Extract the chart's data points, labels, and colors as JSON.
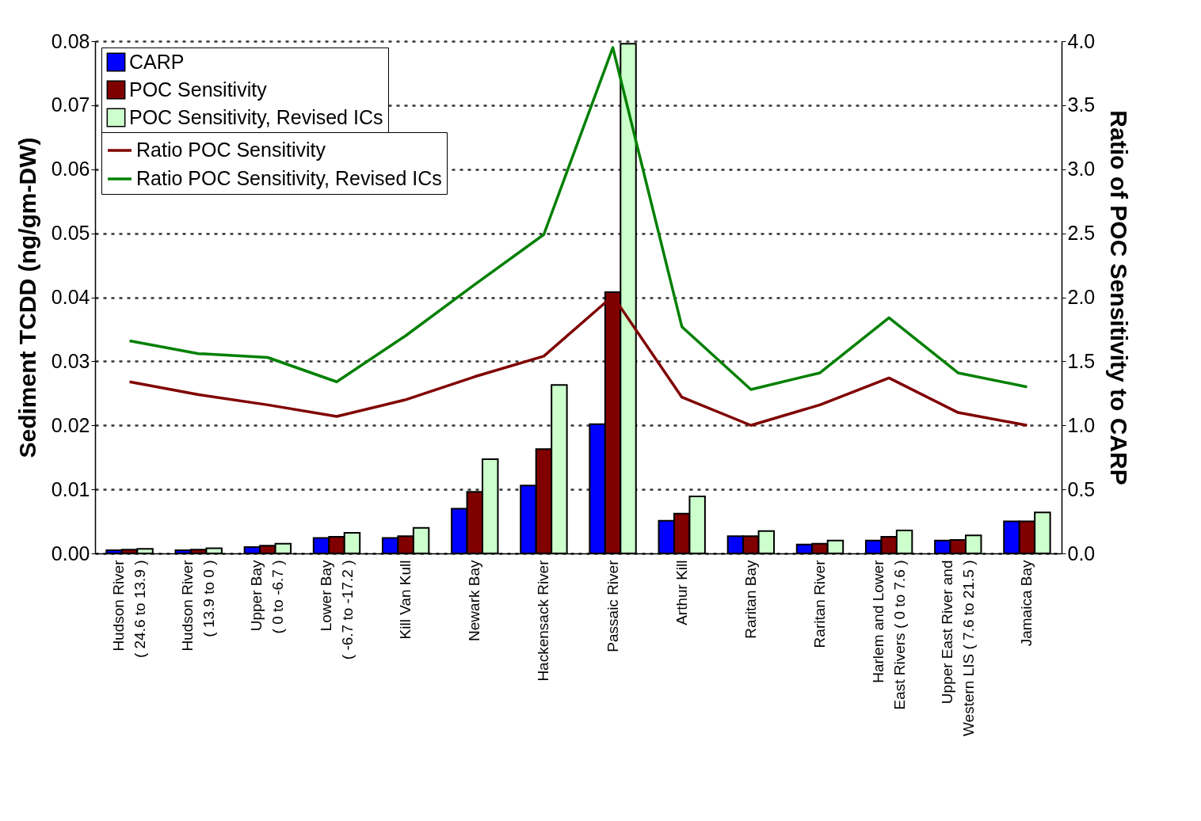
{
  "chart_data": {
    "type": "bar",
    "categories": [
      "Hudson River\n( 24.6 to 13.9 )",
      "Hudson River\n( 13.9 to 0 )",
      "Upper Bay\n( 0 to -6.7 )",
      "Lower Bay\n( -6.7 to -17.2 )",
      "Kill Van Kull",
      "Newark Bay",
      "Hackensack River",
      "Passaic River",
      "Arthur Kill",
      "Raritan Bay",
      "Raritan River",
      "Harlem and Lower\nEast Rivers ( 0 to 7.6 )",
      "Upper East River and\nWestern LIS ( 7.6 to 21.5 )",
      "Jamaica Bay"
    ],
    "ylabel": "Sediment TCDD (ng/gm-DW)",
    "y2label": "Ratio of POC Sensitivity to CARP",
    "series": [
      {
        "name": "CARP",
        "type": "bar",
        "color": "#0000ff",
        "values": [
          0.0005,
          0.0005,
          0.001,
          0.0024,
          0.0024,
          0.007,
          0.0106,
          0.0202,
          0.0051,
          0.0027,
          0.0014,
          0.002,
          0.002,
          0.005
        ]
      },
      {
        "name": "POC Sensitivity",
        "type": "bar",
        "color": "#800000",
        "values": [
          0.0006,
          0.0006,
          0.0012,
          0.0026,
          0.0027,
          0.0096,
          0.0163,
          0.0408,
          0.0062,
          0.0027,
          0.0015,
          0.0026,
          0.0021,
          0.005
        ]
      },
      {
        "name": "POC Sensitivity, Revised ICs",
        "type": "bar",
        "color": "#ccffcc",
        "values": [
          0.0007,
          0.0008,
          0.0015,
          0.0032,
          0.004,
          0.0147,
          0.0263,
          0.0796,
          0.0089,
          0.0035,
          0.002,
          0.0036,
          0.0028,
          0.0064
        ]
      },
      {
        "name": "Ratio POC Sensitivity",
        "type": "line",
        "axis": "y2",
        "color": "#800000",
        "values": [
          1.34,
          1.24,
          1.16,
          1.07,
          1.2,
          1.38,
          1.54,
          2.01,
          1.22,
          1.0,
          1.16,
          1.37,
          1.1,
          1.0
        ]
      },
      {
        "name": "Ratio POC Sensitivity, Revised ICs",
        "type": "line",
        "axis": "y2",
        "color": "#008000",
        "values": [
          1.66,
          1.56,
          1.53,
          1.34,
          1.7,
          2.1,
          2.49,
          3.95,
          1.77,
          1.28,
          1.41,
          1.84,
          1.41,
          1.3
        ]
      }
    ],
    "ylim": [
      0,
      0.08
    ],
    "yticks": [
      {
        "value": 0,
        "label": "0.00"
      },
      0.01,
      0.02,
      0.03,
      0.04,
      0.05,
      0.06,
      0.07,
      0.08
    ],
    "y2lim": [
      0,
      4
    ],
    "y2ticks": [
      {
        "value": 0,
        "label": "0.0"
      },
      0.5,
      {
        "value": 1,
        "label": "1.0"
      },
      1.5,
      {
        "value": 2,
        "label": "2.0"
      },
      2.5,
      {
        "value": 3,
        "label": "3.0"
      },
      3.5,
      {
        "value": 4,
        "label": "4.0"
      }
    ],
    "grid": "y",
    "legend": "top left"
  }
}
